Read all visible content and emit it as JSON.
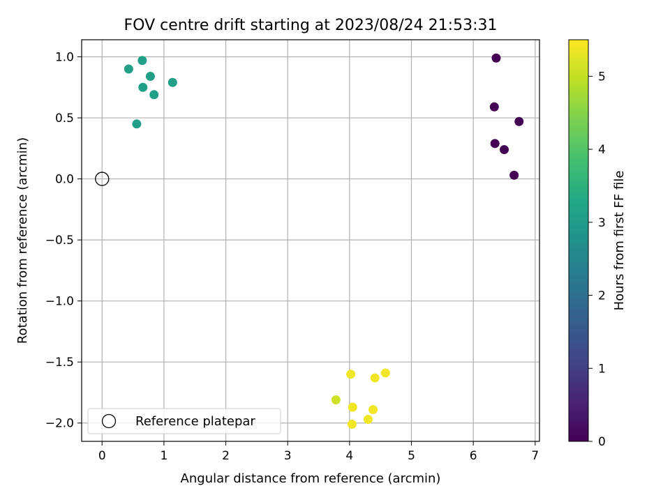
{
  "chart_data": {
    "type": "scatter",
    "title": "FOV centre drift starting at 2023/08/24 21:53:31",
    "xlabel": "Angular distance from reference (arcmin)",
    "ylabel": "Rotation from reference (arcmin)",
    "xlim": [
      -0.33,
      7.07
    ],
    "ylim": [
      -2.15,
      1.14
    ],
    "xticks": [
      0,
      1,
      2,
      3,
      4,
      5,
      6,
      7
    ],
    "xtick_labels": [
      "0",
      "1",
      "2",
      "3",
      "4",
      "5",
      "6",
      "7"
    ],
    "yticks": [
      -2.0,
      -1.5,
      -1.0,
      -0.5,
      0.0,
      0.5,
      1.0
    ],
    "ytick_labels": [
      "−2.0",
      "−1.5",
      "−1.0",
      "−0.5",
      "0.0",
      "0.5",
      "1.0"
    ],
    "grid": true,
    "legend": {
      "placement": "lower-left",
      "entries": [
        "Reference platepar"
      ]
    },
    "reference_point": {
      "x": 0,
      "y": 0
    },
    "colorbar": {
      "label": "Hours from first FF file",
      "range": [
        0,
        5.5
      ],
      "ticks": [
        0,
        1,
        2,
        3,
        4,
        5
      ],
      "tick_labels": [
        "0",
        "1",
        "2",
        "3",
        "4",
        "5"
      ],
      "colormap": "viridis"
    },
    "points": [
      {
        "x": 6.37,
        "y": 0.99,
        "hours": 0.0
      },
      {
        "x": 6.34,
        "y": 0.59,
        "hours": 0.0
      },
      {
        "x": 6.74,
        "y": 0.47,
        "hours": 0.0
      },
      {
        "x": 6.35,
        "y": 0.29,
        "hours": 0.0
      },
      {
        "x": 6.5,
        "y": 0.24,
        "hours": 0.0
      },
      {
        "x": 6.66,
        "y": 0.03,
        "hours": 0.0
      },
      {
        "x": 0.65,
        "y": 0.97,
        "hours": 3.1
      },
      {
        "x": 0.43,
        "y": 0.9,
        "hours": 3.1
      },
      {
        "x": 0.78,
        "y": 0.84,
        "hours": 3.1
      },
      {
        "x": 1.14,
        "y": 0.79,
        "hours": 3.1
      },
      {
        "x": 0.66,
        "y": 0.75,
        "hours": 3.1
      },
      {
        "x": 0.84,
        "y": 0.69,
        "hours": 3.1
      },
      {
        "x": 0.56,
        "y": 0.45,
        "hours": 3.1
      },
      {
        "x": 4.02,
        "y": -1.6,
        "hours": 5.4
      },
      {
        "x": 4.58,
        "y": -1.59,
        "hours": 5.4
      },
      {
        "x": 4.41,
        "y": -1.63,
        "hours": 5.4
      },
      {
        "x": 3.78,
        "y": -1.81,
        "hours": 5.1
      },
      {
        "x": 4.05,
        "y": -1.87,
        "hours": 5.4
      },
      {
        "x": 4.38,
        "y": -1.89,
        "hours": 5.4
      },
      {
        "x": 4.3,
        "y": -1.97,
        "hours": 5.4
      },
      {
        "x": 4.04,
        "y": -2.01,
        "hours": 5.4
      }
    ]
  }
}
